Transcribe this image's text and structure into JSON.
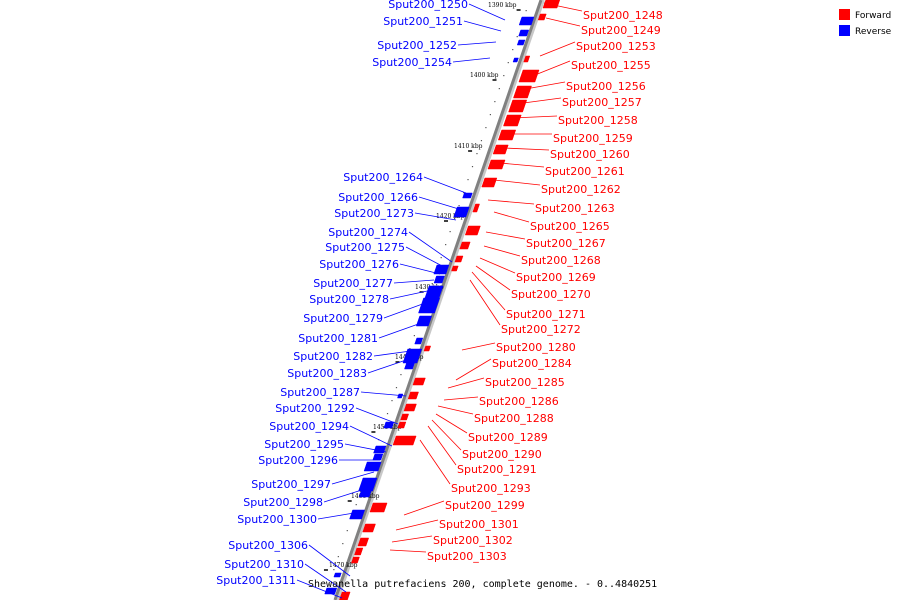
{
  "colors": {
    "forward": "#ff0000",
    "reverse": "#0000ff",
    "axis": "#808080"
  },
  "legend": [
    {
      "label": "Forward",
      "color": "#ff0000"
    },
    {
      "label": "Reverse",
      "color": "#0000ff"
    }
  ],
  "caption": "Shewanella putrefaciens 200, complete genome. - 0..4840251",
  "ticks": [
    "1390 kbp",
    "1400 kbp",
    "1410 kbp",
    "1420 kbp",
    "1430 kbp",
    "1440 kbp",
    "1450 kbp",
    "1460 kbp",
    "1470 kbp"
  ],
  "forward_genes": [
    "Sput200_1248",
    "Sput200_1249",
    "Sput200_1253",
    "Sput200_1255",
    "Sput200_1256",
    "Sput200_1257",
    "Sput200_1258",
    "Sput200_1259",
    "Sput200_1260",
    "Sput200_1261",
    "Sput200_1262",
    "Sput200_1263",
    "Sput200_1265",
    "Sput200_1267",
    "Sput200_1268",
    "Sput200_1269",
    "Sput200_1270",
    "Sput200_1271",
    "Sput200_1272",
    "Sput200_1280",
    "Sput200_1284",
    "Sput200_1285",
    "Sput200_1286",
    "Sput200_1288",
    "Sput200_1289",
    "Sput200_1290",
    "Sput200_1291",
    "Sput200_1293",
    "Sput200_1299",
    "Sput200_1301",
    "Sput200_1302",
    "Sput200_1303"
  ],
  "reverse_genes": [
    "Sput200_1250",
    "Sput200_1251",
    "Sput200_1252",
    "Sput200_1254",
    "Sput200_1264",
    "Sput200_1266",
    "Sput200_1273",
    "Sput200_1274",
    "Sput200_1275",
    "Sput200_1276",
    "Sput200_1277",
    "Sput200_1278",
    "Sput200_1279",
    "Sput200_1281",
    "Sput200_1282",
    "Sput200_1283",
    "Sput200_1287",
    "Sput200_1292",
    "Sput200_1294",
    "Sput200_1295",
    "Sput200_1296",
    "Sput200_1297",
    "Sput200_1298",
    "Sput200_1300",
    "Sput200_1306",
    "Sput200_1310",
    "Sput200_1311"
  ]
}
